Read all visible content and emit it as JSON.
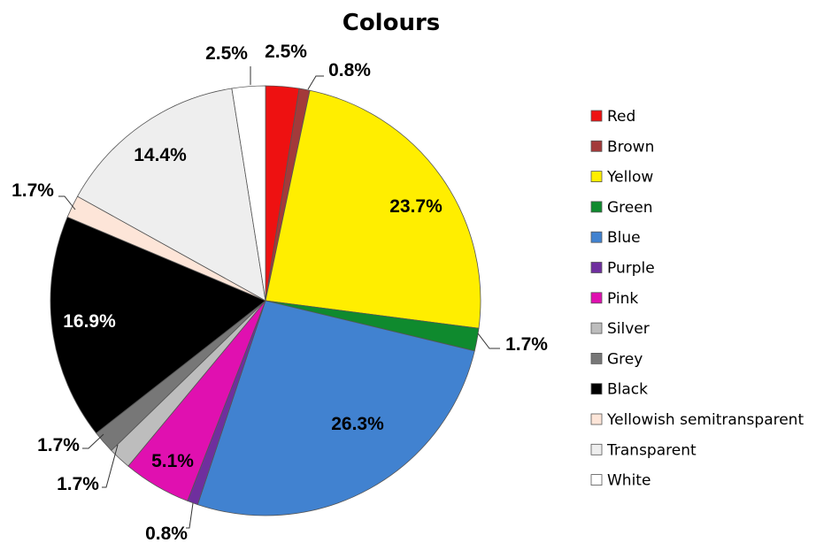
{
  "chart_data": {
    "type": "pie",
    "title": "Colours",
    "legend_position": "right",
    "slices": [
      {
        "label": "Red",
        "value": 2.5,
        "display": "2.5%",
        "color": "#ee1111"
      },
      {
        "label": "Brown",
        "value": 0.8,
        "display": "0.8%",
        "color": "#a33a3a"
      },
      {
        "label": "Yellow",
        "value": 23.7,
        "display": "23.7%",
        "color": "#ffee00"
      },
      {
        "label": "Green",
        "value": 1.7,
        "display": "1.7%",
        "color": "#0f8a2e"
      },
      {
        "label": "Blue",
        "value": 26.3,
        "display": "26.3%",
        "color": "#4182d0"
      },
      {
        "label": "Purple",
        "value": 0.8,
        "display": "0.8%",
        "color": "#6f2f9e"
      },
      {
        "label": "Pink",
        "value": 5.1,
        "display": "5.1%",
        "color": "#e010b0"
      },
      {
        "label": "Silver",
        "value": 1.7,
        "display": "1.7%",
        "color": "#bdbdbd"
      },
      {
        "label": "Grey",
        "value": 1.7,
        "display": "1.7%",
        "color": "#777777"
      },
      {
        "label": "Black",
        "value": 16.9,
        "display": "16.9%",
        "color": "#000000"
      },
      {
        "label": "Yellowish semitransparent",
        "value": 1.7,
        "display": "1.7%",
        "color": "#fde5d8"
      },
      {
        "label": "Transparent",
        "value": 14.4,
        "display": "14.4%",
        "color": "#eeeeee"
      },
      {
        "label": "White",
        "value": 2.5,
        "display": "2.5%",
        "color": "#ffffff"
      }
    ]
  }
}
